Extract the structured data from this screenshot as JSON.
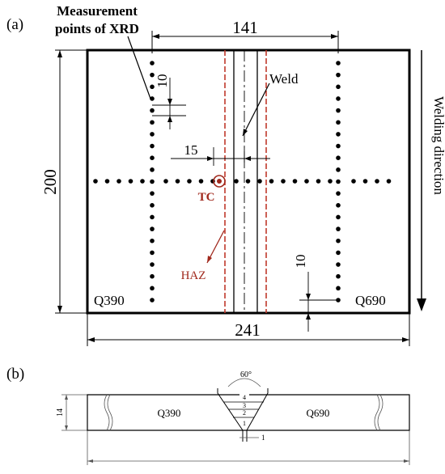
{
  "panel_a": {
    "label": "(a)",
    "xrd_label_line1": "Measurement",
    "xrd_label_line2": "points of XRD",
    "dim_top": "141",
    "dim_left": "200",
    "dim_bottom": "241",
    "dim_10_top": "10",
    "dim_15": "15",
    "dim_10_bottom": "10",
    "weld_label": "Weld",
    "tc_label": "TC",
    "haz_label": "HAZ",
    "left_material": "Q390",
    "right_material": "Q690",
    "direction_label": "Welding direction"
  },
  "panel_b": {
    "label": "(b)",
    "angle": "60°",
    "thickness": "14",
    "left_material": "Q390",
    "right_material": "Q690",
    "passes": [
      "1",
      "2",
      "3",
      "4"
    ],
    "root_gap": "1"
  },
  "colors": {
    "haz": "#c0392b",
    "tc": "#a0281c",
    "line": "#000000",
    "faint": "#555555"
  }
}
